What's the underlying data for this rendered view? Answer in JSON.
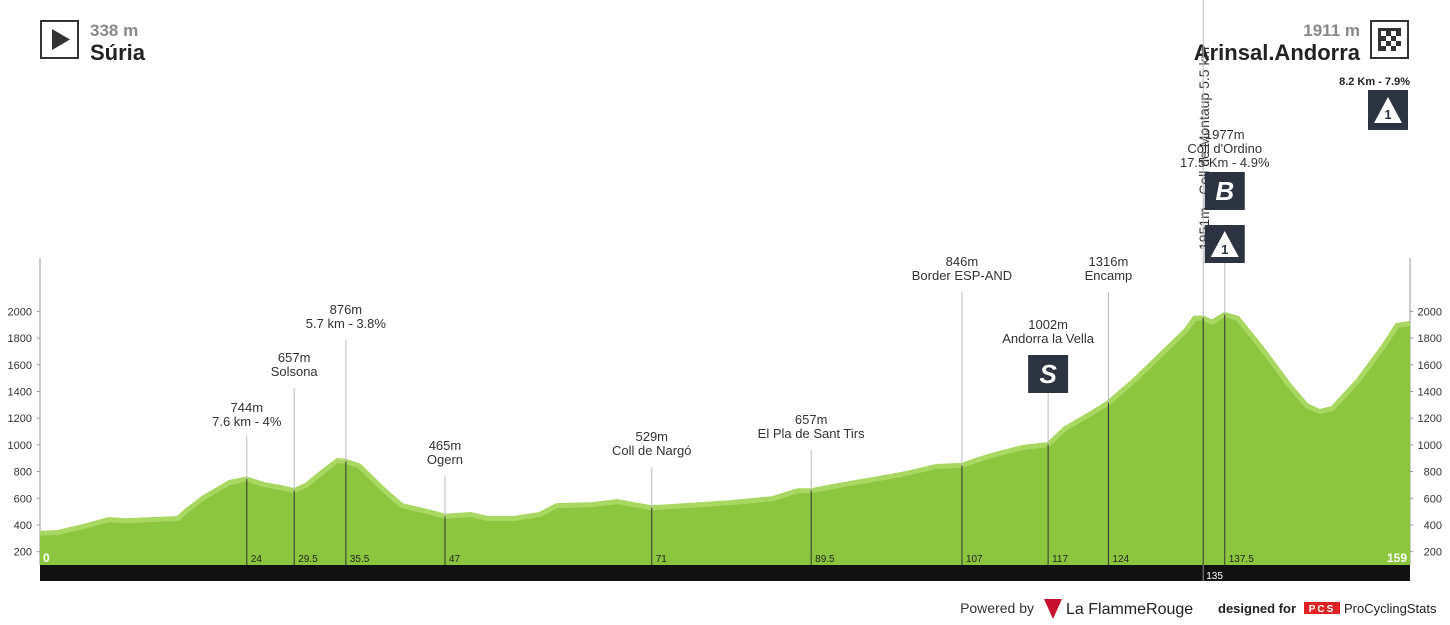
{
  "header": {
    "start": {
      "elevation": "338 m",
      "name": "Súria"
    },
    "finish": {
      "elevation": "1911 m",
      "name": "Arinsal.Andorra",
      "climb": "8.2 Km - 7.9%",
      "category": "1"
    }
  },
  "chart_data": {
    "type": "area",
    "color": "#8cc63f",
    "x": [
      0,
      2,
      5,
      8,
      10,
      13,
      16,
      17,
      19,
      22,
      24,
      26,
      28,
      29.5,
      31,
      33,
      34.5,
      35.5,
      37,
      40,
      42,
      45,
      47,
      50,
      52,
      55,
      58,
      60,
      64,
      67,
      69,
      71,
      75,
      80,
      85,
      88,
      89.5,
      92,
      96,
      100,
      104,
      107,
      110,
      114,
      117,
      119,
      122,
      124,
      127,
      130,
      133,
      134,
      135,
      136,
      137.5,
      139,
      142,
      145,
      147,
      148.5,
      150,
      153,
      156,
      157.5,
      159
    ],
    "values": [
      338,
      343,
      388,
      440,
      432,
      440,
      448,
      507,
      605,
      718,
      744,
      702,
      680,
      657,
      702,
      807,
      882,
      876,
      845,
      657,
      545,
      500,
      465,
      478,
      448,
      448,
      478,
      545,
      552,
      575,
      552,
      529,
      545,
      567,
      597,
      657,
      657,
      687,
      733,
      778,
      838,
      846,
      913,
      980,
      1002,
      1123,
      1235,
      1316,
      1483,
      1670,
      1858,
      1948,
      1951,
      1918,
      1977,
      1948,
      1708,
      1445,
      1295,
      1250,
      1273,
      1483,
      1745,
      1895,
      1911
    ],
    "xlim": [
      0,
      159
    ],
    "ylim": [
      100,
      2400
    ],
    "yticks": [
      200,
      400,
      600,
      800,
      1000,
      1200,
      1400,
      1600,
      1800,
      2000
    ],
    "markers": [
      {
        "km": 24,
        "lines": [
          "744m",
          "7.6 km - 4%"
        ]
      },
      {
        "km": 29.5,
        "lines": [
          "657m",
          "Solsona"
        ]
      },
      {
        "km": 35.5,
        "lines": [
          "876m",
          "5.7 km - 3.8%"
        ]
      },
      {
        "km": 47,
        "lines": [
          "465m",
          "Ogern"
        ]
      },
      {
        "km": 71,
        "lines": [
          "529m",
          "Coll de Nargó"
        ]
      },
      {
        "km": 89.5,
        "lines": [
          "657m",
          "El Pla de Sant Tirs"
        ]
      },
      {
        "km": 107,
        "lines": [
          "846m",
          "Border ESP-AND"
        ]
      },
      {
        "km": 117,
        "lines": [
          "1002m",
          "Andorra la Vella"
        ],
        "icons": [
          "S"
        ]
      },
      {
        "km": 124,
        "lines": [
          "1316m",
          "Encamp"
        ]
      },
      {
        "km": 135,
        "lines": [
          "1951m - Coll de Montaup 5.5 km"
        ]
      },
      {
        "km": 137.5,
        "lines": [
          "1977m",
          "Coll d'Ordino",
          "17.5 Km - 4.9%"
        ],
        "icons": [
          "B",
          "1"
        ]
      }
    ]
  },
  "footer": {
    "powered": "Powered by",
    "brand": "La FlammeRouge",
    "designed": "designed for",
    "pcs": "PCS",
    "site": "ProCyclingStats"
  }
}
